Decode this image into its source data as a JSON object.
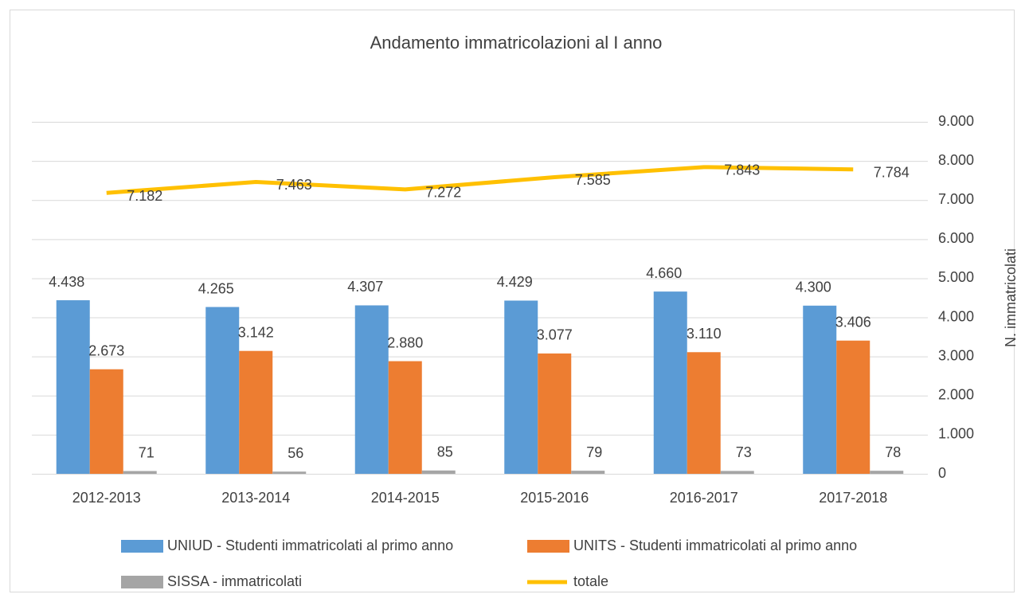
{
  "chart_data": {
    "type": "bar",
    "title": "Andamento immatricolazioni al I anno",
    "y_label": "N. immatricolati",
    "categories": [
      "2012-2013",
      "2013-2014",
      "2014-2015",
      "2015-2016",
      "2016-2017",
      "2017-2018"
    ],
    "series": [
      {
        "name": "UNIUD - Studenti immatricolati al primo anno",
        "type": "bar",
        "color": "#5b9bd5",
        "values": [
          4438,
          4265,
          4307,
          4429,
          4660,
          4300
        ],
        "value_labels": [
          "4.438",
          "4.265",
          "4.307",
          "4.429",
          "4.660",
          "4.300"
        ]
      },
      {
        "name": "UNITS - Studenti immatricolati al primo anno",
        "type": "bar",
        "color": "#ed7d31",
        "values": [
          2673,
          3142,
          2880,
          3077,
          3110,
          3406
        ],
        "value_labels": [
          "2.673",
          "3.142",
          "2.880",
          "3.077",
          "3.110",
          "3.406"
        ]
      },
      {
        "name": "SISSA - immatricolati",
        "type": "bar",
        "color": "#a5a5a5",
        "values": [
          71,
          56,
          85,
          79,
          73,
          78
        ]
      },
      {
        "name": "totale",
        "type": "line",
        "color": "#ffc000",
        "values": [
          7182,
          7463,
          7272,
          7585,
          7843,
          7784
        ],
        "value_labels": [
          "7.182",
          "7.463",
          "7.272",
          "7.585",
          "7.843",
          "7.784"
        ]
      }
    ],
    "ylim": [
      0,
      9000
    ],
    "yticks": [
      0,
      {
        "value": 1000,
        "label": "1.000"
      },
      {
        "value": 2000,
        "label": "2.000"
      },
      {
        "value": 3000,
        "label": "3.000"
      },
      {
        "value": 4000,
        "label": "4.000"
      },
      {
        "value": 5000,
        "label": "5.000"
      },
      {
        "value": 6000,
        "label": "6.000"
      },
      {
        "value": 7000,
        "label": "7.000"
      },
      {
        "value": 8000,
        "label": "8.000"
      },
      {
        "value": 9000,
        "label": "9.000"
      }
    ],
    "grid": true
  }
}
